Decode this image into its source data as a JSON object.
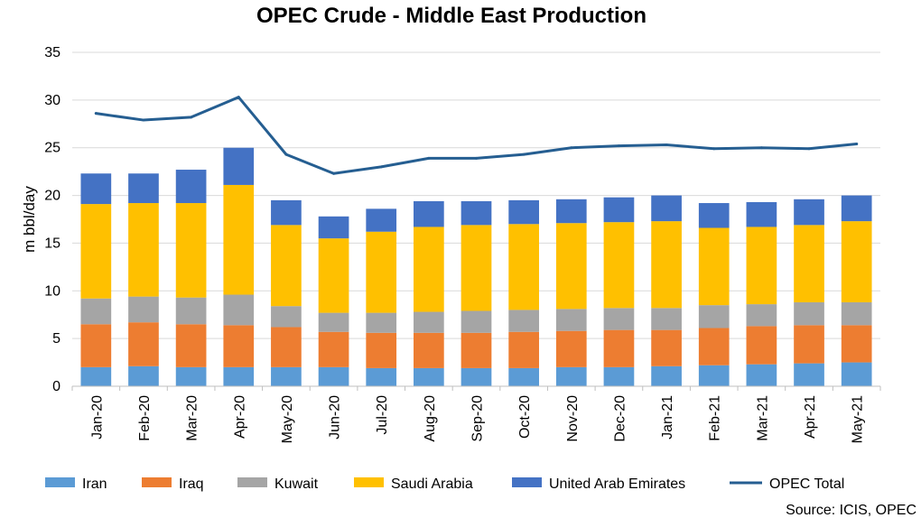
{
  "chart_data": {
    "type": "bar",
    "title": "OPEC Crude - Middle East Production",
    "xlabel": "",
    "ylabel": "m bbl/day",
    "ylim": [
      0,
      35
    ],
    "yticks": [
      "0",
      "5",
      "10",
      "15",
      "20",
      "25",
      "30",
      "35"
    ],
    "categories": [
      "Jan-20",
      "Feb-20",
      "Mar-20",
      "Apr-20",
      "May-20",
      "Jun-20",
      "Jul-20",
      "Aug-20",
      "Sep-20",
      "Oct-20",
      "Nov-20",
      "Dec-20",
      "Jan-21",
      "Feb-21",
      "Mar-21",
      "Apr-21",
      "May-21"
    ],
    "stacked": true,
    "series": [
      {
        "name": "Iran",
        "kind": "bar",
        "color": "#5B9BD5",
        "values": [
          2.0,
          2.1,
          2.0,
          2.0,
          2.0,
          2.0,
          1.9,
          1.9,
          1.9,
          1.9,
          2.0,
          2.0,
          2.1,
          2.2,
          2.3,
          2.4,
          2.5
        ]
      },
      {
        "name": "Iraq",
        "kind": "bar",
        "color": "#ED7D31",
        "values": [
          4.5,
          4.6,
          4.5,
          4.4,
          4.2,
          3.7,
          3.7,
          3.7,
          3.7,
          3.8,
          3.8,
          3.9,
          3.8,
          3.9,
          4.0,
          4.0,
          3.9
        ]
      },
      {
        "name": "Kuwait",
        "kind": "bar",
        "color": "#A5A5A5",
        "values": [
          2.7,
          2.7,
          2.8,
          3.2,
          2.2,
          2.0,
          2.1,
          2.2,
          2.3,
          2.3,
          2.3,
          2.3,
          2.3,
          2.4,
          2.3,
          2.4,
          2.4
        ]
      },
      {
        "name": "Saudi Arabia",
        "kind": "bar",
        "color": "#FFC000",
        "values": [
          9.9,
          9.8,
          9.9,
          11.5,
          8.5,
          7.8,
          8.5,
          8.9,
          9.0,
          9.0,
          9.0,
          9.0,
          9.1,
          8.1,
          8.1,
          8.1,
          8.5
        ]
      },
      {
        "name": "United Arab Emirates",
        "kind": "bar",
        "color": "#4472C4",
        "values": [
          3.2,
          3.1,
          3.5,
          3.9,
          2.6,
          2.3,
          2.4,
          2.7,
          2.5,
          2.5,
          2.5,
          2.6,
          2.7,
          2.6,
          2.6,
          2.7,
          2.7
        ]
      },
      {
        "name": "OPEC Total",
        "kind": "line",
        "color": "#255E91",
        "values": [
          28.6,
          27.9,
          28.2,
          30.3,
          24.3,
          22.3,
          23.0,
          23.9,
          23.9,
          24.3,
          25.0,
          25.2,
          25.3,
          24.9,
          25.0,
          24.9,
          25.4
        ]
      }
    ],
    "legend_position": "bottom",
    "grid": true,
    "source": "Source: ICIS, OPEC"
  }
}
